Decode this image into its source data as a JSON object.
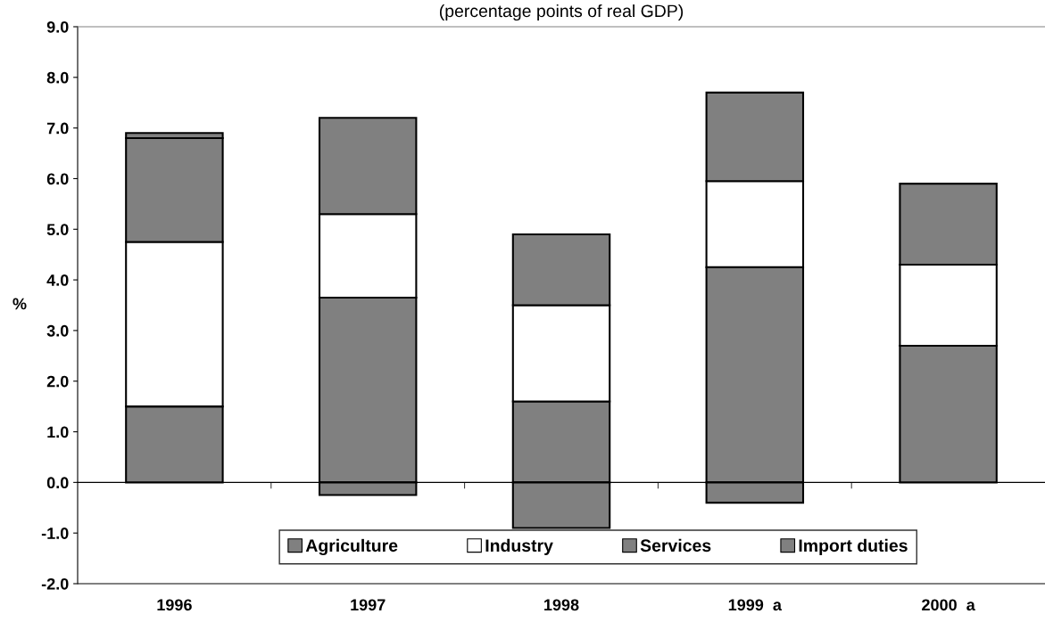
{
  "chart_data": {
    "type": "bar",
    "stacked": true,
    "subtitle": "(percentage points of real GDP)",
    "ylabel": "%",
    "categories": [
      "1996",
      "1997",
      "1998",
      "1999  a",
      "2000  a"
    ],
    "series": [
      {
        "name": "Agriculture",
        "color": "#808080",
        "values": [
          1.5,
          3.65,
          1.6,
          4.25,
          2.7
        ]
      },
      {
        "name": "Industry",
        "color": "#ffffff",
        "values": [
          3.25,
          1.65,
          1.9,
          1.7,
          1.6
        ]
      },
      {
        "name": "Services",
        "color": "#808080",
        "values": [
          2.05,
          1.9,
          1.4,
          1.75,
          1.6
        ]
      },
      {
        "name": "Import duties",
        "color": "#808080",
        "values": [
          0.1,
          -0.25,
          -0.9,
          -0.4,
          0
        ]
      }
    ],
    "ylim": [
      -2.0,
      9.0
    ],
    "yticks": [
      {
        "value": -2,
        "label": "-2.0"
      },
      {
        "value": -1,
        "label": "-1.0"
      },
      {
        "value": 0,
        "label": "0.0"
      },
      {
        "value": 1,
        "label": "1.0"
      },
      {
        "value": 2,
        "label": "2.0"
      },
      {
        "value": 3,
        "label": "3.0"
      },
      {
        "value": 4,
        "label": "4.0"
      },
      {
        "value": 5,
        "label": "5.0"
      },
      {
        "value": 6,
        "label": "6.0"
      },
      {
        "value": 7,
        "label": "7.0"
      },
      {
        "value": 8,
        "label": "8.0"
      },
      {
        "value": 9,
        "label": "9.0"
      }
    ],
    "legend": "bottom"
  }
}
